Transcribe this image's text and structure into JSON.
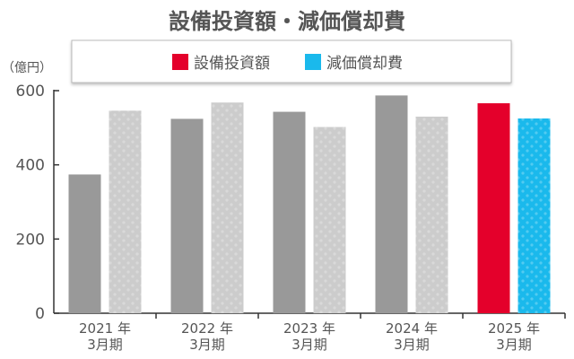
{
  "chart_data": {
    "type": "bar",
    "title": "設備投資額・減価償却費",
    "ylabel": "（億円）",
    "ylim": [
      0,
      600
    ],
    "yticks": [
      0,
      200,
      400,
      600
    ],
    "categories": [
      [
        "2021 年",
        "3月期"
      ],
      [
        "2022 年",
        "3月期"
      ],
      [
        "2023 年",
        "3月期"
      ],
      [
        "2024 年",
        "3月期"
      ],
      [
        "2025 年",
        "3月期"
      ]
    ],
    "series": [
      {
        "name": "設備投資額",
        "values": [
          374,
          524,
          543,
          587,
          566
        ],
        "color": "#999999",
        "highlight_color": "#e4002b"
      },
      {
        "name": "減価償却費",
        "values": [
          546,
          568,
          502,
          530,
          525
        ],
        "color": "#cccccc",
        "highlight_color": "#1ab9ec"
      }
    ],
    "highlighted_category_index": 4,
    "legend_position": "top",
    "grid": false
  }
}
